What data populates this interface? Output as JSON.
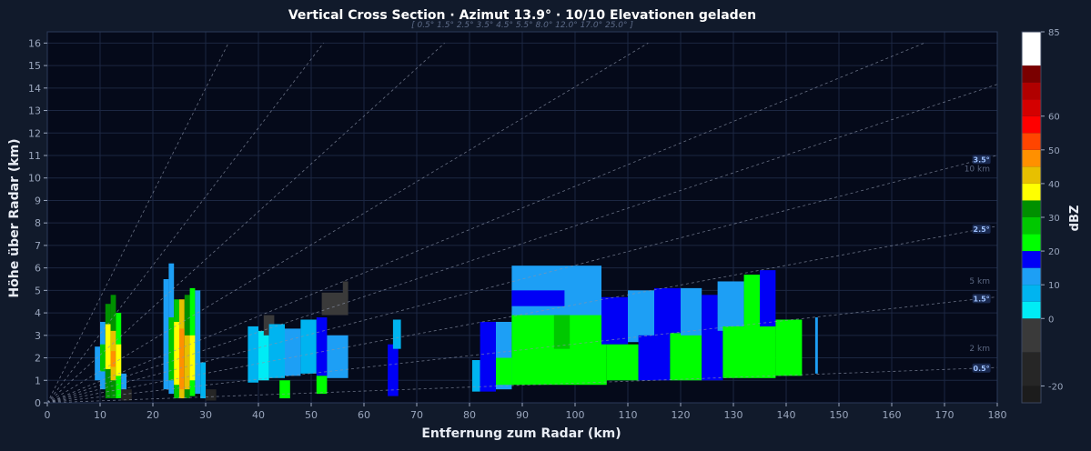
{
  "header": {
    "title": "Vertical Cross Section · Azimut 13.9° · 10/10 Elevationen geladen",
    "subtitle": "[ 0.5°  1.5°  2.5°  3.5°  4.5°  5.5°  8.0°  12.0°  17.0°  25.0° ]"
  },
  "colors": {
    "page_bg": "#111a2b",
    "plot_bg": "#050a1a",
    "grid": "#1c2742",
    "tick_text": "#9aa6bd",
    "label_text": "#e8ecf4",
    "ray": "#8a93a8",
    "elev_label_bg": "#1d2e58",
    "elev_label_text": "#9fc2ff"
  },
  "chart_data": {
    "type": "heatmap",
    "title": "Vertical Cross Section · Azimut 13.9° · 10/10 Elevationen geladen",
    "xlabel": "Entfernung zum Radar (km)",
    "ylabel": "Höhe über Radar (km)",
    "xlim": [
      0,
      180
    ],
    "ylim": [
      0,
      16.5
    ],
    "xticks": [
      0,
      10,
      20,
      30,
      40,
      50,
      60,
      70,
      80,
      90,
      100,
      110,
      120,
      130,
      140,
      150,
      160,
      170,
      180
    ],
    "yticks": [
      0,
      1,
      2,
      3,
      4,
      5,
      6,
      7,
      8,
      9,
      10,
      11,
      12,
      13,
      14,
      15,
      16
    ],
    "grid": true,
    "elevations_deg": [
      0.5,
      1.5,
      2.5,
      3.5,
      4.5,
      5.5,
      8.0,
      12.0,
      17.0,
      25.0
    ],
    "labeled_elevations": [
      "0.5°",
      "1.5°",
      "2.5°",
      "3.5°"
    ],
    "height_refs": [
      {
        "label": "2 km",
        "y": 2.3
      },
      {
        "label": "5 km",
        "y": 5.3
      },
      {
        "label": "10 km",
        "y": 10.3
      }
    ],
    "colorbar": {
      "label": "dBZ",
      "min": -25,
      "max": 85,
      "ticks": [
        -20,
        0,
        10,
        20,
        30,
        40,
        50,
        60,
        85
      ],
      "bins": [
        {
          "from": -25,
          "to": -20,
          "color": "#1c1c1c"
        },
        {
          "from": -20,
          "to": -10,
          "color": "#262626"
        },
        {
          "from": -10,
          "to": 0,
          "color": "#3a3a3a"
        },
        {
          "from": 0,
          "to": 5,
          "color": "#00ecf5"
        },
        {
          "from": 5,
          "to": 10,
          "color": "#00b4f0"
        },
        {
          "from": 10,
          "to": 15,
          "color": "#1d9ff5"
        },
        {
          "from": 15,
          "to": 20,
          "color": "#0000f6"
        },
        {
          "from": 20,
          "to": 25,
          "color": "#00ff00"
        },
        {
          "from": 25,
          "to": 30,
          "color": "#00c800"
        },
        {
          "from": 30,
          "to": 35,
          "color": "#009000"
        },
        {
          "from": 35,
          "to": 40,
          "color": "#ffff00"
        },
        {
          "from": 40,
          "to": 45,
          "color": "#e7c000"
        },
        {
          "from": 45,
          "to": 50,
          "color": "#ff9000"
        },
        {
          "from": 50,
          "to": 55,
          "color": "#ff4500"
        },
        {
          "from": 55,
          "to": 60,
          "color": "#ff0000"
        },
        {
          "from": 60,
          "to": 65,
          "color": "#d40000"
        },
        {
          "from": 65,
          "to": 70,
          "color": "#b00000"
        },
        {
          "from": 70,
          "to": 75,
          "color": "#7a0000"
        },
        {
          "from": 75,
          "to": 85,
          "color": "#ffffff"
        }
      ]
    },
    "echo_cells": [
      {
        "x0": 9.0,
        "x1": 10.0,
        "y0": 1.0,
        "y1": 2.5,
        "dbz": 12
      },
      {
        "x0": 10.0,
        "x1": 11.0,
        "y0": 0.6,
        "y1": 3.6,
        "dbz": 14
      },
      {
        "x0": 10.0,
        "x1": 11.0,
        "y0": 1.4,
        "y1": 2.6,
        "dbz": 27
      },
      {
        "x0": 11.0,
        "x1": 12.0,
        "y0": 0.2,
        "y1": 4.4,
        "dbz": 33
      },
      {
        "x0": 11.0,
        "x1": 12.0,
        "y0": 1.5,
        "y1": 3.5,
        "dbz": 38
      },
      {
        "x0": 12.0,
        "x1": 13.0,
        "y0": 0.2,
        "y1": 4.8,
        "dbz": 30
      },
      {
        "x0": 12.0,
        "x1": 13.0,
        "y0": 1.0,
        "y1": 3.2,
        "dbz": 42
      },
      {
        "x0": 12.0,
        "x1": 13.0,
        "y0": 1.6,
        "y1": 2.3,
        "dbz": 47
      },
      {
        "x0": 13.0,
        "x1": 14.0,
        "y0": 0.2,
        "y1": 4.0,
        "dbz": 22
      },
      {
        "x0": 13.0,
        "x1": 14.0,
        "y0": 1.2,
        "y1": 2.6,
        "dbz": 37
      },
      {
        "x0": 14.0,
        "x1": 15.0,
        "y0": 0.4,
        "y1": 1.3,
        "dbz": 12
      },
      {
        "x0": 14.0,
        "x1": 16.0,
        "y0": 0.1,
        "y1": 0.6,
        "dbz": -15
      },
      {
        "x0": 22.0,
        "x1": 23.0,
        "y0": 0.6,
        "y1": 5.5,
        "dbz": 12
      },
      {
        "x0": 23.0,
        "x1": 24.0,
        "y0": 0.4,
        "y1": 6.2,
        "dbz": 14
      },
      {
        "x0": 23.0,
        "x1": 24.0,
        "y0": 1.0,
        "y1": 3.8,
        "dbz": 27
      },
      {
        "x0": 24.0,
        "x1": 25.0,
        "y0": 0.2,
        "y1": 4.6,
        "dbz": 27
      },
      {
        "x0": 24.0,
        "x1": 25.0,
        "y0": 0.8,
        "y1": 3.6,
        "dbz": 38
      },
      {
        "x0": 25.0,
        "x1": 26.0,
        "y0": 0.2,
        "y1": 4.6,
        "dbz": 40
      },
      {
        "x0": 25.0,
        "x1": 26.0,
        "y0": 0.6,
        "y1": 3.3,
        "dbz": 47
      },
      {
        "x0": 26.0,
        "x1": 27.0,
        "y0": 0.2,
        "y1": 4.8,
        "dbz": 30
      },
      {
        "x0": 26.0,
        "x1": 27.0,
        "y0": 0.6,
        "y1": 3.0,
        "dbz": 42
      },
      {
        "x0": 27.0,
        "x1": 28.0,
        "y0": 0.3,
        "y1": 5.1,
        "dbz": 22
      },
      {
        "x0": 27.0,
        "x1": 28.0,
        "y0": 1.0,
        "y1": 3.0,
        "dbz": 36
      },
      {
        "x0": 28.0,
        "x1": 29.0,
        "y0": 0.4,
        "y1": 5.0,
        "dbz": 14
      },
      {
        "x0": 29.0,
        "x1": 30.0,
        "y0": 0.2,
        "y1": 1.8,
        "dbz": 8
      },
      {
        "x0": 30.0,
        "x1": 32.0,
        "y0": 0.1,
        "y1": 0.6,
        "dbz": -15
      },
      {
        "x0": 38.0,
        "x1": 40.0,
        "y0": 0.9,
        "y1": 3.4,
        "dbz": 6
      },
      {
        "x0": 40.0,
        "x1": 42.0,
        "y0": 1.0,
        "y1": 3.2,
        "dbz": 4
      },
      {
        "x0": 41.0,
        "x1": 43.0,
        "y0": 3.0,
        "y1": 3.9,
        "dbz": -5
      },
      {
        "x0": 42.0,
        "x1": 45.0,
        "y0": 1.1,
        "y1": 3.5,
        "dbz": 8
      },
      {
        "x0": 44.0,
        "x1": 46.0,
        "y0": 0.2,
        "y1": 1.0,
        "dbz": 22
      },
      {
        "x0": 45.0,
        "x1": 48.0,
        "y0": 1.2,
        "y1": 3.3,
        "dbz": 12
      },
      {
        "x0": 48.0,
        "x1": 51.0,
        "y0": 1.3,
        "y1": 3.7,
        "dbz": 6
      },
      {
        "x0": 51.0,
        "x1": 53.0,
        "y0": 1.2,
        "y1": 3.8,
        "dbz": 17
      },
      {
        "x0": 51.0,
        "x1": 53.0,
        "y0": 0.4,
        "y1": 1.2,
        "dbz": 22
      },
      {
        "x0": 53.0,
        "x1": 57.0,
        "y0": 1.1,
        "y1": 3.0,
        "dbz": 12
      },
      {
        "x0": 52.0,
        "x1": 57.0,
        "y0": 3.9,
        "y1": 4.9,
        "dbz": -5
      },
      {
        "x0": 56.0,
        "x1": 57.0,
        "y0": 4.6,
        "y1": 5.4,
        "dbz": -5
      },
      {
        "x0": 64.5,
        "x1": 66.5,
        "y0": 0.3,
        "y1": 2.6,
        "dbz": 15
      },
      {
        "x0": 65.5,
        "x1": 67.0,
        "y0": 2.4,
        "y1": 3.7,
        "dbz": 6
      },
      {
        "x0": 80.5,
        "x1": 82.0,
        "y0": 0.5,
        "y1": 1.9,
        "dbz": 6
      },
      {
        "x0": 82.0,
        "x1": 85.0,
        "y0": 0.5,
        "y1": 3.6,
        "dbz": 16
      },
      {
        "x0": 85.0,
        "x1": 88.0,
        "y0": 0.6,
        "y1": 3.6,
        "dbz": 12
      },
      {
        "x0": 88.0,
        "x1": 105.0,
        "y0": 3.0,
        "y1": 6.1,
        "dbz": 12
      },
      {
        "x0": 88.0,
        "x1": 98.0,
        "y0": 4.3,
        "y1": 5.0,
        "dbz": 17
      },
      {
        "x0": 88.0,
        "x1": 106.0,
        "y0": 0.8,
        "y1": 3.9,
        "dbz": 22
      },
      {
        "x0": 96.0,
        "x1": 99.0,
        "y0": 2.4,
        "y1": 3.9,
        "dbz": 27
      },
      {
        "x0": 85.0,
        "x1": 88.0,
        "y0": 0.8,
        "y1": 2.0,
        "dbz": 22
      },
      {
        "x0": 105.0,
        "x1": 110.0,
        "y0": 2.6,
        "y1": 4.7,
        "dbz": 17
      },
      {
        "x0": 106.0,
        "x1": 112.0,
        "y0": 1.0,
        "y1": 2.6,
        "dbz": 22
      },
      {
        "x0": 110.0,
        "x1": 115.0,
        "y0": 2.7,
        "y1": 5.0,
        "dbz": 12
      },
      {
        "x0": 112.0,
        "x1": 118.0,
        "y0": 1.0,
        "y1": 3.0,
        "dbz": 17
      },
      {
        "x0": 115.0,
        "x1": 120.0,
        "y0": 2.8,
        "y1": 5.1,
        "dbz": 17
      },
      {
        "x0": 118.0,
        "x1": 124.0,
        "y0": 1.0,
        "y1": 3.1,
        "dbz": 22
      },
      {
        "x0": 120.0,
        "x1": 124.0,
        "y0": 3.0,
        "y1": 5.1,
        "dbz": 12
      },
      {
        "x0": 124.0,
        "x1": 128.0,
        "y0": 1.0,
        "y1": 3.2,
        "dbz": 17
      },
      {
        "x0": 124.0,
        "x1": 127.0,
        "y0": 3.1,
        "y1": 4.8,
        "dbz": 17
      },
      {
        "x0": 127.0,
        "x1": 132.0,
        "y0": 3.2,
        "y1": 5.4,
        "dbz": 12
      },
      {
        "x0": 128.0,
        "x1": 138.0,
        "y0": 1.1,
        "y1": 3.4,
        "dbz": 22
      },
      {
        "x0": 132.0,
        "x1": 135.0,
        "y0": 3.3,
        "y1": 5.7,
        "dbz": 22
      },
      {
        "x0": 135.0,
        "x1": 138.0,
        "y0": 3.4,
        "y1": 5.9,
        "dbz": 17
      },
      {
        "x0": 138.0,
        "x1": 143.0,
        "y0": 1.2,
        "y1": 3.7,
        "dbz": 22
      },
      {
        "x0": 145.5,
        "x1": 146.0,
        "y0": 1.3,
        "y1": 3.8,
        "dbz": 12
      }
    ]
  }
}
